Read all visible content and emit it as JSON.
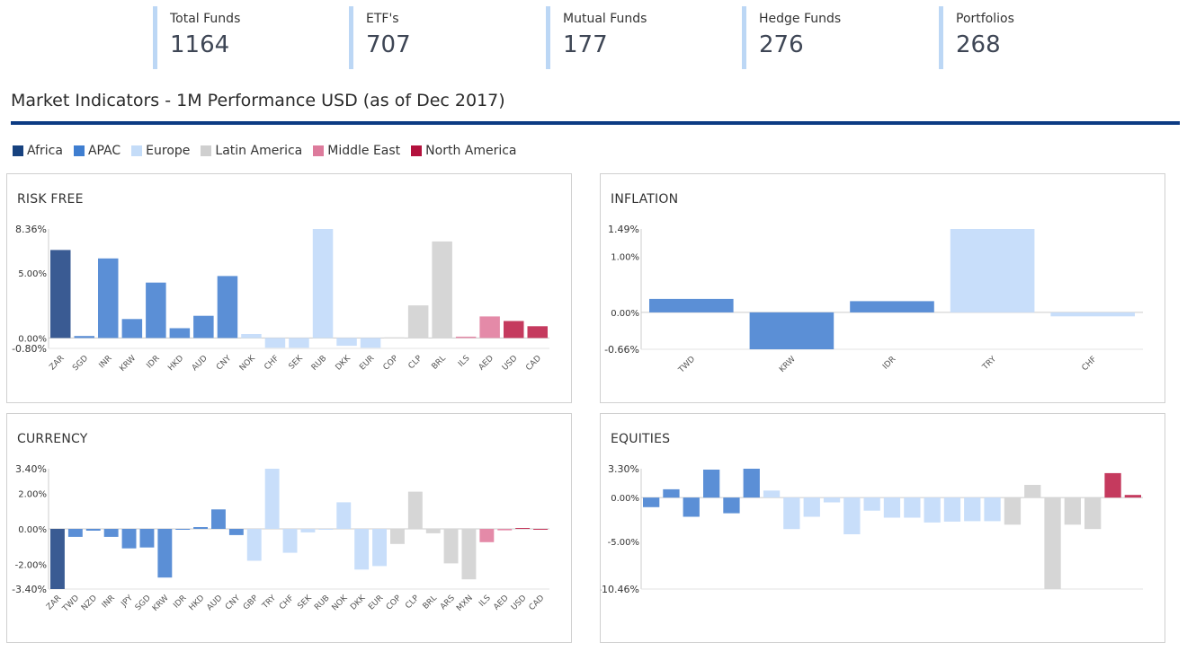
{
  "stats": [
    {
      "label": "Total Funds",
      "value": "1164"
    },
    {
      "label": "ETF's",
      "value": "707"
    },
    {
      "label": "Mutual Funds",
      "value": "177"
    },
    {
      "label": "Hedge Funds",
      "value": "276"
    },
    {
      "label": "Portfolios",
      "value": "268"
    }
  ],
  "section_title": "Market Indicators - 1M Performance USD (as of Dec 2017)",
  "legend": [
    {
      "label": "Africa",
      "color": "#17427f"
    },
    {
      "label": "APAC",
      "color": "#3f7ed0"
    },
    {
      "label": "Europe",
      "color": "#c4dcf8"
    },
    {
      "label": "Latin America",
      "color": "#cfcfcf"
    },
    {
      "label": "Middle East",
      "color": "#dd7b9c"
    },
    {
      "label": "North America",
      "color": "#b3123d"
    }
  ],
  "colors": {
    "Africa": "#3a5b93",
    "APAC": "#5b8fd6",
    "Europe": "#c8defa",
    "Latin America": "#d6d6d6",
    "Middle East": "#e48aa8",
    "North America": "#c53a5e"
  },
  "chart_data": [
    {
      "type": "bar",
      "title": "RISK FREE",
      "ylim": [
        -0.8,
        8.36
      ],
      "yticks": [
        {
          "v": 8.36,
          "label": "8.36%"
        },
        {
          "v": 5.0,
          "label": "5.00%"
        },
        {
          "v": 0.0,
          "label": "0.00%"
        },
        {
          "v": -0.8,
          "label": "-0.80%"
        }
      ],
      "categories": [
        "ZAR",
        "SGD",
        "INR",
        "KRW",
        "IDR",
        "HKD",
        "AUD",
        "CNY",
        "NOK",
        "CHF",
        "SEK",
        "RUB",
        "DKK",
        "EUR",
        "COP",
        "CLP",
        "BRL",
        "ILS",
        "AED",
        "USD",
        "CAD"
      ],
      "regions": [
        "Africa",
        "APAC",
        "APAC",
        "APAC",
        "APAC",
        "APAC",
        "APAC",
        "APAC",
        "Europe",
        "Europe",
        "Europe",
        "Europe",
        "Europe",
        "Europe",
        "Latin America",
        "Latin America",
        "Latin America",
        "Middle East",
        "Middle East",
        "North America",
        "North America"
      ],
      "values": [
        6.75,
        0.15,
        6.1,
        1.45,
        4.25,
        0.75,
        1.7,
        4.75,
        0.3,
        -0.75,
        -0.75,
        8.36,
        -0.6,
        -0.75,
        0.05,
        2.5,
        7.4,
        0.1,
        1.65,
        1.3,
        0.9
      ]
    },
    {
      "type": "bar",
      "title": "INFLATION",
      "ylim": [
        -0.66,
        1.49
      ],
      "yticks": [
        {
          "v": 1.49,
          "label": "1.49%"
        },
        {
          "v": 1.0,
          "label": "1.00%"
        },
        {
          "v": 0.0,
          "label": "0.00%"
        },
        {
          "v": -0.66,
          "label": "-0.66%"
        }
      ],
      "categories": [
        "TWD",
        "KRW",
        "IDR",
        "TRY",
        "CHF"
      ],
      "regions": [
        "APAC",
        "APAC",
        "APAC",
        "Europe",
        "Europe"
      ],
      "values": [
        0.24,
        -0.66,
        0.2,
        1.49,
        -0.07
      ]
    },
    {
      "type": "bar",
      "title": "CURRENCY",
      "ylim": [
        -3.4,
        3.4
      ],
      "yticks": [
        {
          "v": 3.4,
          "label": "3.40%"
        },
        {
          "v": 2.0,
          "label": "2.00%"
        },
        {
          "v": 0.0,
          "label": "0.00%"
        },
        {
          "v": -2.0,
          "label": "-2.00%"
        },
        {
          "v": -3.4,
          "label": "-3.40%"
        }
      ],
      "categories": [
        "ZAR",
        "TWD",
        "NZD",
        "INR",
        "JPY",
        "SGD",
        "KRW",
        "IDR",
        "HKD",
        "AUD",
        "CNY",
        "GBP",
        "TRY",
        "CHF",
        "SEK",
        "RUB",
        "NOK",
        "DKK",
        "EUR",
        "COP",
        "CLP",
        "BRL",
        "ARS",
        "MXN",
        "ILS",
        "AED",
        "USD",
        "CAD"
      ],
      "regions": [
        "Africa",
        "APAC",
        "APAC",
        "APAC",
        "APAC",
        "APAC",
        "APAC",
        "APAC",
        "APAC",
        "APAC",
        "APAC",
        "Europe",
        "Europe",
        "Europe",
        "Europe",
        "Europe",
        "Europe",
        "Europe",
        "Europe",
        "Latin America",
        "Latin America",
        "Latin America",
        "Latin America",
        "Latin America",
        "Middle East",
        "Middle East",
        "North America",
        "North America"
      ],
      "values": [
        -3.4,
        -0.45,
        -0.1,
        -0.45,
        -1.1,
        -1.05,
        -2.75,
        -0.05,
        0.1,
        1.1,
        -0.35,
        -1.8,
        3.4,
        -1.35,
        -0.2,
        -0.05,
        1.5,
        -2.3,
        -2.1,
        -0.85,
        2.1,
        -0.25,
        -1.95,
        -2.85,
        -0.75,
        -0.08,
        0.05,
        -0.05
      ]
    },
    {
      "type": "bar",
      "title": "EQUITIES",
      "ylim": [
        -10.46,
        3.3
      ],
      "yticks": [
        {
          "v": 3.3,
          "label": "3.30%"
        },
        {
          "v": 0.0,
          "label": "0.00%"
        },
        {
          "v": -5.0,
          "label": "-5.00%"
        },
        {
          "v": -10.46,
          "label": "-10.46%"
        }
      ],
      "categories": [
        "",
        "",
        "",
        "",
        "",
        "",
        "",
        "",
        "",
        "",
        "",
        "",
        "",
        "",
        "",
        "",
        "",
        "",
        "",
        "",
        "",
        "",
        "",
        "",
        ""
      ],
      "regions": [
        "APAC",
        "APAC",
        "APAC",
        "APAC",
        "APAC",
        "APAC",
        "Europe",
        "Europe",
        "Europe",
        "Europe",
        "Europe",
        "Europe",
        "Europe",
        "Europe",
        "Europe",
        "Europe",
        "Europe",
        "Europe",
        "Latin America",
        "Latin America",
        "Latin America",
        "Latin America",
        "Latin America",
        "North America",
        "North America"
      ],
      "values": [
        -1.1,
        0.95,
        -2.2,
        3.2,
        -1.8,
        3.3,
        0.8,
        -3.6,
        -2.2,
        -0.55,
        -4.2,
        -1.5,
        -2.3,
        -2.3,
        -2.85,
        -2.75,
        -2.7,
        -2.7,
        -3.1,
        1.45,
        -10.46,
        -3.1,
        -3.6,
        2.8,
        0.3
      ]
    }
  ]
}
